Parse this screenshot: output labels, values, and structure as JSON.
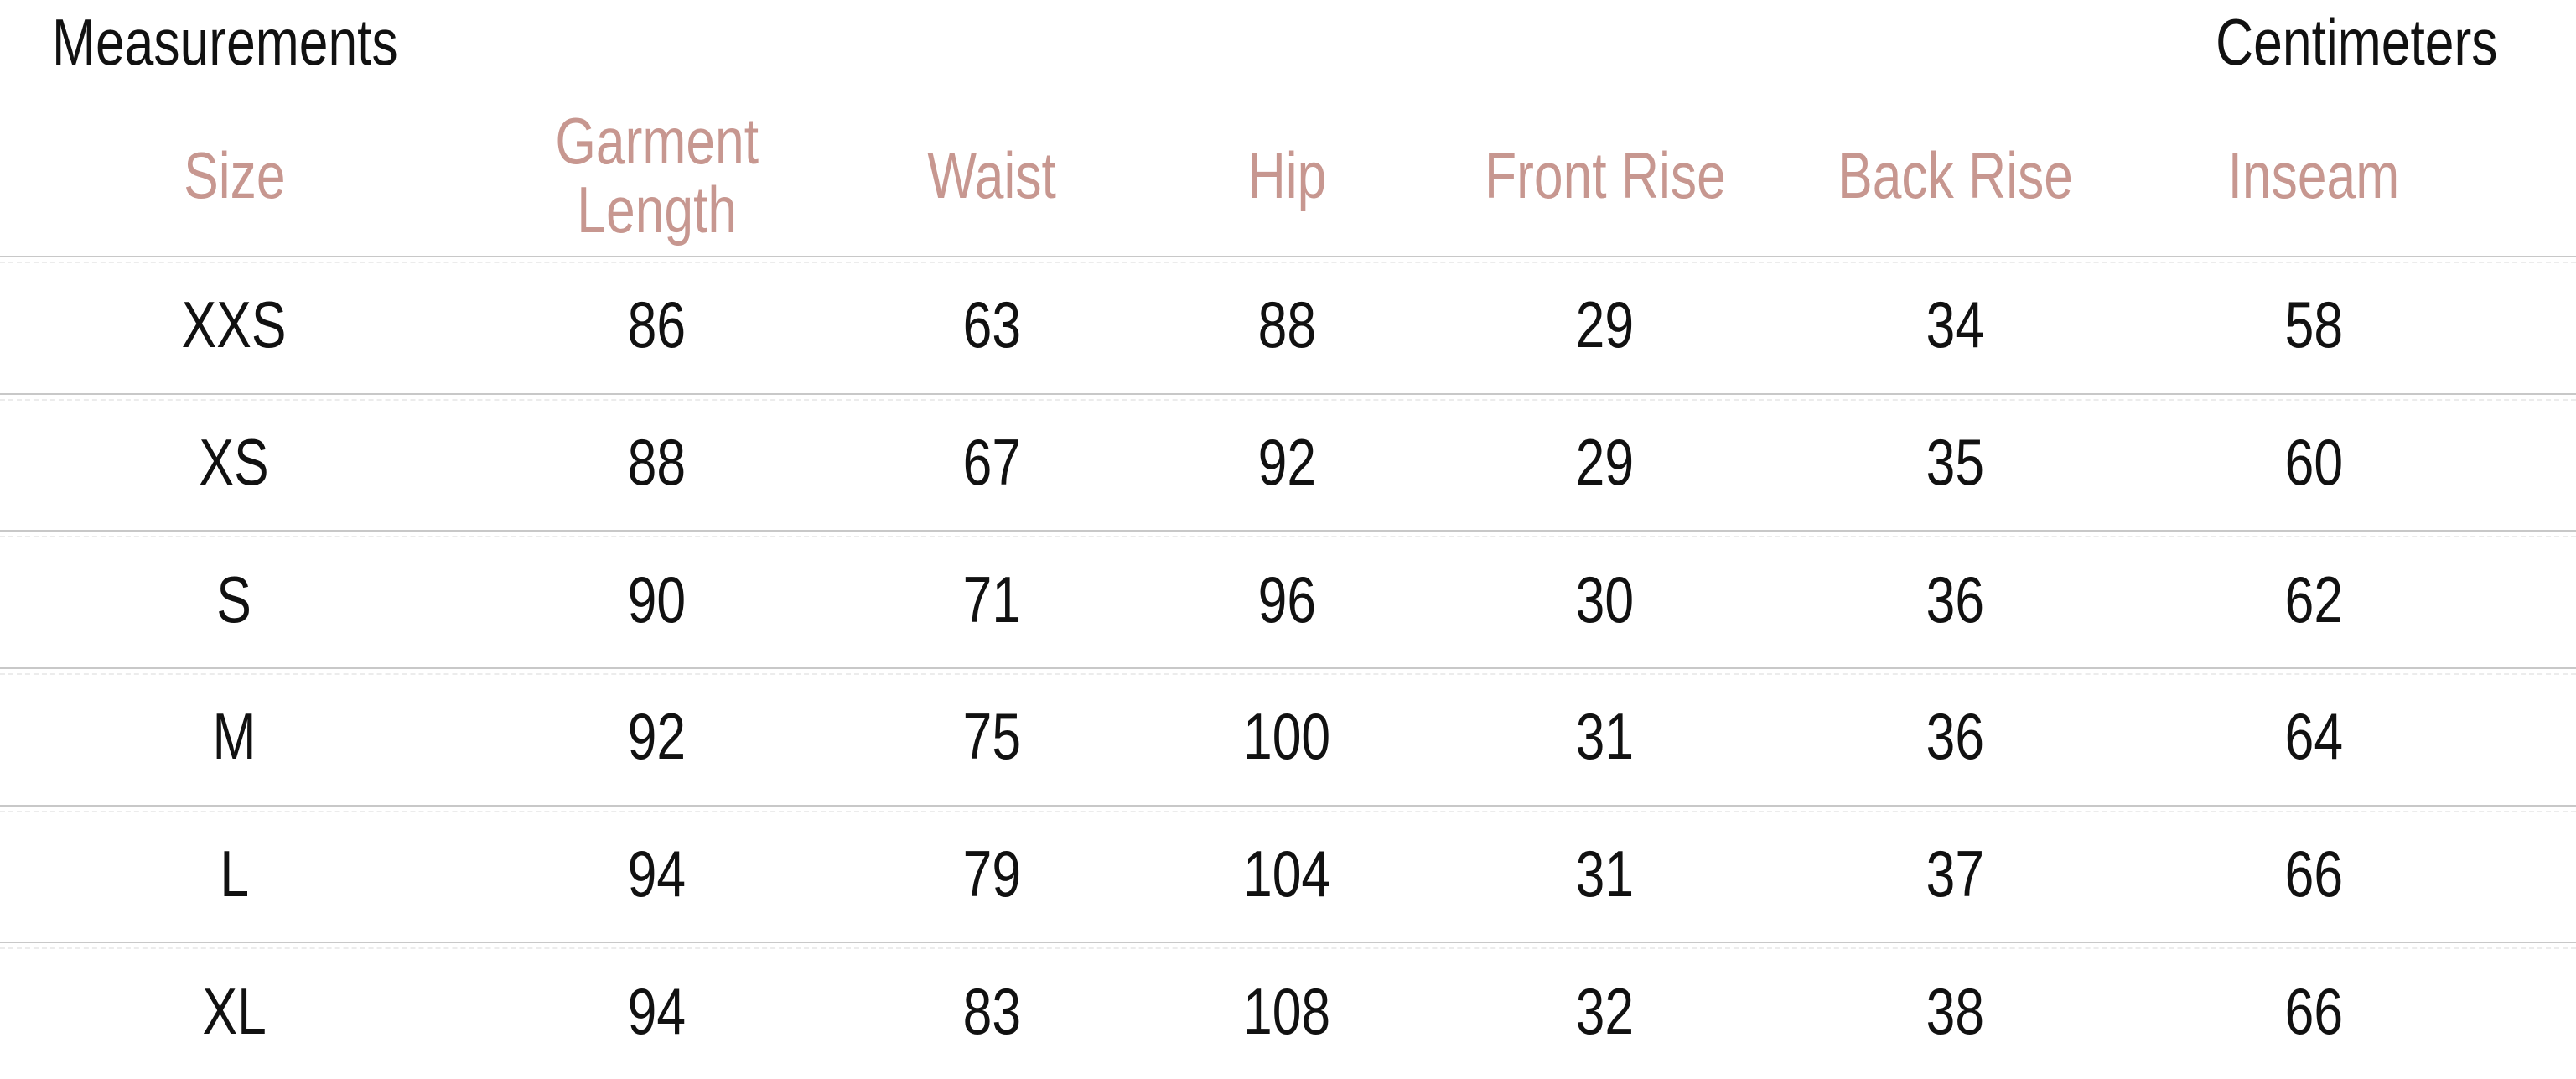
{
  "header": {
    "title": "Measurements",
    "units": "Centimeters"
  },
  "colors": {
    "accent_header_text": "#c79790",
    "body_text": "#111111",
    "divider_solid": "#c8c8c8",
    "divider_dashed": "#ececec",
    "background": "#ffffff"
  },
  "table": {
    "columns": [
      {
        "label": "Size"
      },
      {
        "label": "Garment\nLength"
      },
      {
        "label": "Waist"
      },
      {
        "label": "Hip"
      },
      {
        "label": "Front Rise"
      },
      {
        "label": "Back Rise"
      },
      {
        "label": "Inseam"
      }
    ],
    "rows": [
      {
        "cells": [
          "XXS",
          "86",
          "63",
          "88",
          "29",
          "34",
          "58"
        ]
      },
      {
        "cells": [
          "XS",
          "88",
          "67",
          "92",
          "29",
          "35",
          "60"
        ]
      },
      {
        "cells": [
          "S",
          "90",
          "71",
          "96",
          "30",
          "36",
          "62"
        ]
      },
      {
        "cells": [
          "M",
          "92",
          "75",
          "100",
          "31",
          "36",
          "64"
        ]
      },
      {
        "cells": [
          "L",
          "94",
          "79",
          "104",
          "31",
          "37",
          "66"
        ]
      },
      {
        "cells": [
          "XL",
          "94",
          "83",
          "108",
          "32",
          "38",
          "66"
        ]
      }
    ]
  }
}
